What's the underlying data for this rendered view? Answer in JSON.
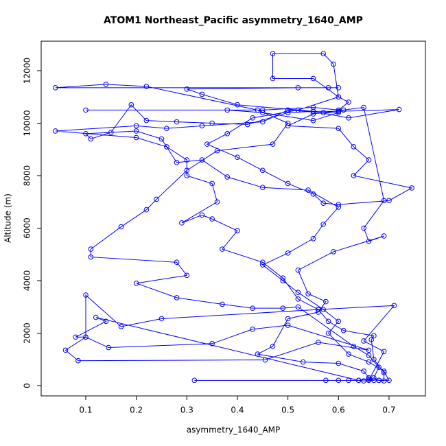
{
  "chart_data": {
    "type": "line",
    "title": "ATOM1 Northeast_Pacific asymmetry_1640_AMP",
    "x_label": "asymmetry_1640_AMP",
    "y_label": "Altitude (m)",
    "x": [
      0.315,
      0.575,
      0.6,
      0.62,
      0.64,
      0.66,
      0.68,
      0.7,
      0.69,
      0.66,
      0.62,
      0.58,
      0.6,
      0.57,
      0.52,
      0.49,
      0.45,
      0.5,
      0.55,
      0.57,
      0.6,
      0.54,
      0.45,
      0.38,
      0.33,
      0.28,
      0.25,
      0.2,
      0.1,
      0.11,
      0.15,
      0.19,
      0.22,
      0.28,
      0.35,
      0.42,
      0.5,
      0.55,
      0.6,
      0.72,
      0.62,
      0.55,
      0.4,
      0.33,
      0.3,
      0.52,
      0.58,
      0.6,
      0.04,
      0.14,
      0.22,
      0.44,
      0.5,
      0.47,
      0.36,
      0.3,
      0.24,
      0.22,
      0.17,
      0.11,
      0.11,
      0.28,
      0.3,
      0.2,
      0.28,
      0.37,
      0.43,
      0.49,
      0.52,
      0.63,
      0.66,
      0.68,
      0.67,
      0.68,
      0.69,
      0.69,
      0.67,
      0.665,
      0.67,
      0.61,
      0.58,
      0.56,
      0.52,
      0.49,
      0.45,
      0.37,
      0.4,
      0.35,
      0.33,
      0.29,
      0.36,
      0.35,
      0.3,
      0.3,
      0.26,
      0.2,
      0.04,
      0.2,
      0.26,
      0.33,
      0.45,
      0.5,
      0.57,
      0.6,
      0.55,
      0.45,
      0.38,
      0.1,
      0.45,
      0.55,
      0.6,
      0.62,
      0.6,
      0.55,
      0.47,
      0.47,
      0.57,
      0.59,
      0.6,
      0.52,
      0.43,
      0.38,
      0.34,
      0.4,
      0.45,
      0.5,
      0.55,
      0.57,
      0.6,
      0.7,
      0.745,
      0.63,
      0.66,
      0.63,
      0.6,
      0.5,
      0.55,
      0.61,
      0.65,
      0.69,
      0.65,
      0.66,
      0.69,
      0.59,
      0.52,
      0.54,
      0.575,
      0.56,
      0.5,
      0.47,
      0.44,
      0.53,
      0.6,
      0.65,
      0.66,
      0.67,
      0.65,
      0.64,
      0.12,
      0.14,
      0.08,
      0.1,
      0.06,
      0.085,
      0.455,
      0.56,
      0.66,
      0.5,
      0.43,
      0.35,
      0.145,
      0.1,
      0.1,
      0.17,
      0.25,
      0.56,
      0.71,
      0.65,
      0.69,
      0.66
    ],
    "series": [
      {
        "color": "#0000ff",
        "values": [
          200,
          200,
          200,
          200,
          200,
          250,
          200,
          200,
          550,
          900,
          1200,
          2000,
          2450,
          2900,
          3550,
          4000,
          4600,
          5050,
          5600,
          6150,
          6800,
          7450,
          7550,
          7950,
          8600,
          8500,
          9400,
          9700,
          9600,
          9400,
          9650,
          10700,
          10100,
          10050,
          10000,
          9950,
          10400,
          10450,
          10450,
          10520,
          10200,
          10450,
          10700,
          11100,
          11300,
          11350,
          11350,
          11350,
          11350,
          11480,
          11400,
          10500,
          10000,
          9200,
          8950,
          8200,
          7100,
          6700,
          6050,
          5200,
          4900,
          4700,
          4200,
          3900,
          3350,
          3100,
          2950,
          2950,
          3000,
          1500,
          1150,
          700,
          300,
          200,
          180,
          500,
          1000,
          1750,
          1900,
          2100,
          2450,
          2900,
          3300,
          4100,
          4700,
          5200,
          5900,
          6350,
          6500,
          6200,
          7000,
          7700,
          8000,
          8600,
          9100,
          9450,
          9700,
          9900,
          9800,
          9900,
          10050,
          10500,
          10400,
          10400,
          10100,
          10400,
          10500,
          10500,
          10500,
          10600,
          10500,
          10800,
          11000,
          11700,
          11700,
          12650,
          12650,
          12250,
          11000,
          10500,
          10200,
          9600,
          9200,
          8700,
          8200,
          7700,
          7300,
          6950,
          6900,
          7050,
          7530,
          8000,
          8600,
          9100,
          9800,
          9900,
          10350,
          10500,
          10600,
          7050,
          6000,
          5500,
          5700,
          5100,
          4400,
          3500,
          3200,
          2800,
          2550,
          1500,
          1200,
          900,
          850,
          550,
          300,
          200,
          180,
          200,
          2600,
          2450,
          1850,
          1850,
          1350,
          950,
          980,
          1650,
          1350,
          2300,
          2150,
          1600,
          1450,
          1850,
          3450,
          2250,
          2550,
          2900,
          3050,
          1700,
          1300,
          200
        ]
      }
    ],
    "xlim": [
      0.0118,
      0.772
    ],
    "ylim": [
      -392,
      13124
    ],
    "xticks": [
      0.1,
      0.2,
      0.3,
      0.4,
      0.5,
      0.6,
      0.7
    ],
    "yticks": [
      0,
      2000,
      4000,
      6000,
      8000,
      10000,
      12000
    ]
  }
}
